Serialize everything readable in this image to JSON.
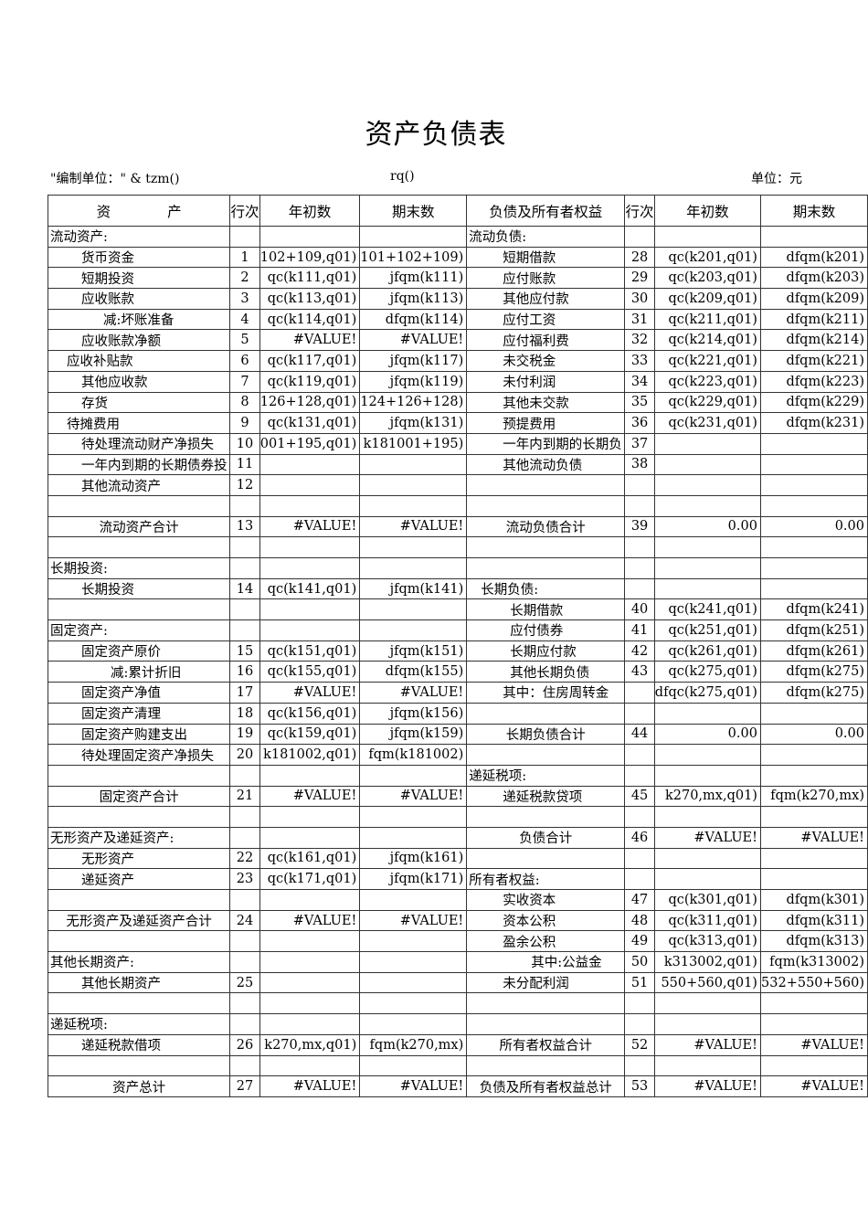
{
  "title": "资产负债表",
  "subheader": {
    "company": "\"编制单位：\" & tzm()",
    "date": "rq()",
    "unit": "单位：元"
  },
  "headers": [
    "资　　　　产",
    "行次",
    "年初数",
    "期末数",
    "负债及所有者权益",
    "行次",
    "年初数",
    "期末数"
  ],
  "rows": [
    {
      "left": [
        "流动资产:",
        "",
        "",
        ""
      ],
      "right": [
        "流动负债:",
        "",
        "",
        ""
      ]
    },
    {
      "left": [
        "货币资金",
        "1",
        "102+109,q01)",
        "101+102+109)"
      ],
      "right": [
        "短期借款",
        "28",
        "qc(k201,q01)",
        "dfqm(k201)"
      ]
    },
    {
      "left": [
        "短期投资",
        "2",
        "qc(k111,q01)",
        "jfqm(k111)"
      ],
      "right": [
        "应付账款",
        "29",
        "qc(k203,q01)",
        "dfqm(k203)"
      ]
    },
    {
      "left": [
        "应收账款",
        "3",
        "qc(k113,q01)",
        "jfqm(k113)"
      ],
      "right": [
        "其他应付款",
        "30",
        "qc(k209,q01)",
        "dfqm(k209)"
      ]
    },
    {
      "left": [
        "减:坏账准备",
        "4",
        "qc(k114,q01)",
        "dfqm(k114)"
      ],
      "right": [
        "应付工资",
        "31",
        "qc(k211,q01)",
        "dfqm(k211)"
      ]
    },
    {
      "left": [
        "应收账款净额",
        "5",
        "#VALUE!",
        "#VALUE!"
      ],
      "right": [
        "应付福利费",
        "32",
        "qc(k214,q01)",
        "dfqm(k214)"
      ]
    },
    {
      "left": [
        "应收补贴款",
        "6",
        "qc(k117,q01)",
        "jfqm(k117)"
      ],
      "right": [
        "未交税金",
        "33",
        "qc(k221,q01)",
        "dfqm(k221)"
      ]
    },
    {
      "left": [
        "其他应收款",
        "7",
        "qc(k119,q01)",
        "jfqm(k119)"
      ],
      "right": [
        "未付利润",
        "34",
        "qc(k223,q01)",
        "dfqm(k223)"
      ]
    },
    {
      "left": [
        "存货",
        "8",
        "126+128,q01)",
        "124+126+128)"
      ],
      "right": [
        "其他未交款",
        "35",
        "qc(k229,q01)",
        "dfqm(k229)"
      ]
    },
    {
      "left": [
        "待摊费用",
        "9",
        "qc(k131,q01)",
        "jfqm(k131)"
      ],
      "right": [
        "预提费用",
        "36",
        "qc(k231,q01)",
        "dfqm(k231)"
      ]
    },
    {
      "left": [
        "待处理流动财产净损失",
        "10",
        "001+195,q01)",
        "k181001+195)"
      ],
      "right": [
        "一年内到期的长期负",
        "37",
        "",
        ""
      ]
    },
    {
      "left": [
        "一年内到期的长期债券投",
        "11",
        "",
        ""
      ],
      "right": [
        "其他流动负债",
        "38",
        "",
        ""
      ]
    },
    {
      "left": [
        "其他流动资产",
        "12",
        "",
        ""
      ],
      "right": [
        "",
        "",
        "",
        ""
      ]
    },
    {
      "left": [
        "",
        "",
        "",
        ""
      ],
      "right": [
        "",
        "",
        "",
        ""
      ]
    },
    {
      "left": [
        "流动资产合计",
        "13",
        "#VALUE!",
        "#VALUE!"
      ],
      "right": [
        "流动负债合计",
        "39",
        "0.00",
        "0.00"
      ]
    },
    {
      "left": [
        "",
        "",
        "",
        ""
      ],
      "right": [
        "",
        "",
        "",
        ""
      ]
    },
    {
      "left": [
        "长期投资:",
        "",
        "",
        ""
      ],
      "right": [
        "",
        "",
        "",
        ""
      ]
    },
    {
      "left": [
        "长期投资",
        "14",
        "qc(k141,q01)",
        "jfqm(k141)"
      ],
      "right": [
        "长期负债:",
        "",
        "",
        ""
      ]
    },
    {
      "left": [
        "",
        "",
        "",
        ""
      ],
      "right": [
        "长期借款",
        "40",
        "qc(k241,q01)",
        "dfqm(k241)"
      ]
    },
    {
      "left": [
        "固定资产:",
        "",
        "",
        ""
      ],
      "right": [
        "应付债券",
        "41",
        "qc(k251,q01)",
        "dfqm(k251)"
      ]
    },
    {
      "left": [
        "固定资产原价",
        "15",
        "qc(k151,q01)",
        "jfqm(k151)"
      ],
      "right": [
        "长期应付款",
        "42",
        "qc(k261,q01)",
        "dfqm(k261)"
      ]
    },
    {
      "left": [
        "减:累计折旧",
        "16",
        "qc(k155,q01)",
        "dfqm(k155)"
      ],
      "right": [
        "其他长期负债",
        "43",
        "qc(k275,q01)",
        "dfqm(k275)"
      ]
    },
    {
      "left": [
        "固定资产净值",
        "17",
        "#VALUE!",
        "#VALUE!"
      ],
      "right": [
        "其中：住房周转金",
        "",
        "dfqc(k275,q01)",
        "dfqm(k275)"
      ]
    },
    {
      "left": [
        "固定资产清理",
        "18",
        "qc(k156,q01)",
        "jfqm(k156)"
      ],
      "right": [
        "",
        "",
        "",
        ""
      ]
    },
    {
      "left": [
        "固定资产购建支出",
        "19",
        "qc(k159,q01)",
        "jfqm(k159)"
      ],
      "right": [
        "长期负债合计",
        "44",
        "0.00",
        "0.00"
      ]
    },
    {
      "left": [
        "待处理固定资产净损失",
        "20",
        "k181002,q01)",
        "fqm(k181002)"
      ],
      "right": [
        "",
        "",
        "",
        ""
      ]
    },
    {
      "left": [
        "",
        "",
        "",
        ""
      ],
      "right": [
        "递延税项:",
        "",
        "",
        ""
      ]
    },
    {
      "left": [
        "固定资产合计",
        "21",
        "#VALUE!",
        "#VALUE!"
      ],
      "right": [
        "递延税款贷项",
        "45",
        "k270,mx,q01)",
        "fqm(k270,mx)"
      ]
    },
    {
      "left": [
        "",
        "",
        "",
        ""
      ],
      "right": [
        "",
        "",
        "",
        ""
      ]
    },
    {
      "left": [
        "无形资产及递延资产:",
        "",
        "",
        ""
      ],
      "right": [
        "负债合计",
        "46",
        "#VALUE!",
        "#VALUE!"
      ]
    },
    {
      "left": [
        "无形资产",
        "22",
        "qc(k161,q01)",
        "jfqm(k161)"
      ],
      "right": [
        "",
        "",
        "",
        ""
      ]
    },
    {
      "left": [
        "递延资产",
        "23",
        "qc(k171,q01)",
        "jfqm(k171)"
      ],
      "right": [
        "所有者权益:",
        "",
        "",
        ""
      ]
    },
    {
      "left": [
        "",
        "",
        "",
        ""
      ],
      "right": [
        "实收资本",
        "47",
        "qc(k301,q01)",
        "dfqm(k301)"
      ]
    },
    {
      "left": [
        "无形资产及递延资产合计",
        "24",
        "#VALUE!",
        "#VALUE!"
      ],
      "right": [
        "资本公积",
        "48",
        "qc(k311,q01)",
        "dfqm(k311)"
      ]
    },
    {
      "left": [
        "",
        "",
        "",
        ""
      ],
      "right": [
        "盈余公积",
        "49",
        "qc(k313,q01)",
        "dfqm(k313)"
      ]
    },
    {
      "left": [
        "其他长期资产:",
        "",
        "",
        ""
      ],
      "right": [
        "其中:公益金",
        "50",
        "k313002,q01)",
        "fqm(k313002)"
      ]
    },
    {
      "left": [
        "其他长期资产",
        "25",
        "",
        ""
      ],
      "right": [
        "未分配利润",
        "51",
        "550+560,q01)",
        "532+550+560)"
      ]
    },
    {
      "left": [
        "",
        "",
        "",
        ""
      ],
      "right": [
        "",
        "",
        "",
        ""
      ]
    },
    {
      "left": [
        "递延税项:",
        "",
        "",
        ""
      ],
      "right": [
        "",
        "",
        "",
        ""
      ]
    },
    {
      "left": [
        "递延税款借项",
        "26",
        "k270,mx,q01)",
        "fqm(k270,mx)"
      ],
      "right": [
        "所有者权益合计",
        "52",
        "#VALUE!",
        "#VALUE!"
      ]
    },
    {
      "left": [
        "",
        "",
        "",
        ""
      ],
      "right": [
        "",
        "",
        "",
        ""
      ]
    },
    {
      "left": [
        "资产总计",
        "27",
        "#VALUE!",
        "#VALUE!"
      ],
      "right": [
        "负债及所有者权益总计",
        "53",
        "#VALUE!",
        "#VALUE!"
      ]
    }
  ]
}
